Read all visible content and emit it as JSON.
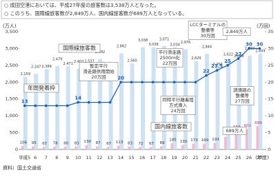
{
  "notes": [
    "○ 成田空港においては、平成27年度の旅客数は3,538万人となった。",
    "○ このうち、国際線旅客数が2,849万人、国内線旅客数が689万人となっている。"
  ],
  "chart_data": {
    "type": "bar-line",
    "y_label": "(万人)",
    "y2_label": "(万回)",
    "x_label": "(年度)",
    "categories": [
      "平成5",
      "6",
      "7",
      "8",
      "9",
      "10",
      "11",
      "12",
      "13",
      "14",
      "15",
      "16",
      "17",
      "18",
      "19",
      "20",
      "21",
      "22",
      "23",
      "24",
      "25",
      "26",
      "27"
    ],
    "series": [
      {
        "name": "国際線旅客数",
        "color": "#cfe2f3",
        "values": [
          2159,
          2247,
          2389,
          2479,
          2471,
          2403,
          2537,
          2692,
          2325,
          2862,
          2560,
          3038,
          3036,
          3071,
          3034,
          2976,
          2626,
          2844,
          2450,
          2622,
          2688,
          2790,
          2849
        ],
        "value_labels": [
          "2,159",
          "2,247",
          "2,389",
          "2,479",
          "2,471",
          "2,403",
          "2,537",
          "2,692",
          "2,325",
          "2,862",
          "2,560",
          "3,038",
          "3,036",
          "3,071",
          "3,034",
          "2,976",
          "2,626",
          "2,844",
          "2,450",
          "2,622",
          "2,688",
          "2,790",
          "2,849"
        ]
      },
      {
        "name": "国内線旅客数",
        "color": "#f5b8cc",
        "values": [
          106,
          95,
          67,
          78,
          80,
          83,
          130,
          87,
          67,
          113,
          83,
          72,
          67,
          89,
          185,
          130,
          173,
          169,
          193,
          372,
          558,
          601,
          689
        ]
      },
      {
        "name": "年間発着枠",
        "color": "#1f5fa8",
        "axis": "y2",
        "values": [
          13,
          13,
          13,
          13,
          13,
          14,
          14,
          14,
          14,
          20,
          20,
          20,
          20,
          20,
          20,
          20,
          20,
          22,
          23.5,
          25,
          27,
          30,
          30
        ]
      }
    ],
    "ylim": [
      0,
      3500
    ],
    "yticks": [
      0,
      500,
      {
        "value": 1000,
        "label": "1,000"
      },
      {
        "value": 1500,
        "label": "1,500"
      },
      {
        "value": 2000,
        "label": "2,000"
      },
      {
        "value": 2500,
        "label": "2,500"
      },
      {
        "value": 3000,
        "label": "3,000"
      },
      {
        "value": 3500,
        "label": "3,500"
      }
    ],
    "y2lim": [
      0,
      35
    ],
    "y2ticks": [
      0,
      5,
      10,
      15,
      20,
      25,
      30,
      35
    ],
    "annotations": [
      {
        "lines": [
          "暫定平行",
          "滑走路供用開始",
          "20万回"
        ]
      },
      {
        "lines": [
          "平行滑走路",
          "2500m化",
          "22万回"
        ]
      },
      {
        "lines": [
          "LCCターミナルの",
          "整備等",
          "30万回"
        ]
      },
      {
        "lines": [
          "2,849万人"
        ]
      },
      {
        "lines": [
          "同時平行離着陸",
          "方式導入",
          "24万回"
        ]
      },
      {
        "lines": [
          "誘導路の",
          "整備等",
          "27万回"
        ]
      },
      {
        "lines": [
          "689万人"
        ]
      }
    ]
  },
  "source": "資料）国土交通省"
}
